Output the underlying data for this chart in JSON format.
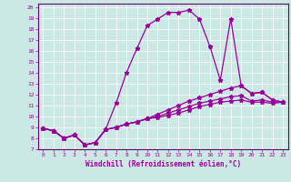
{
  "xlabel": "Windchill (Refroidissement éolien,°C)",
  "bg_color": "#cce8e4",
  "line_color": "#990099",
  "grid_color": "#ffffff",
  "spine_color": "#660066",
  "xlim": [
    -0.5,
    23.5
  ],
  "ylim": [
    7,
    20.3
  ],
  "xticks": [
    0,
    1,
    2,
    3,
    4,
    5,
    6,
    7,
    8,
    9,
    10,
    11,
    12,
    13,
    14,
    15,
    16,
    17,
    18,
    19,
    20,
    21,
    22,
    23
  ],
  "yticks": [
    7,
    8,
    9,
    10,
    11,
    12,
    13,
    14,
    15,
    16,
    17,
    18,
    19,
    20
  ],
  "line1_x": [
    0,
    1,
    2,
    3,
    4,
    5,
    6,
    7,
    8,
    9,
    10,
    11,
    12,
    13,
    14,
    15,
    16,
    17,
    18,
    19,
    20,
    21,
    22,
    23
  ],
  "line1_y": [
    8.9,
    8.7,
    8.0,
    8.3,
    7.4,
    7.6,
    8.8,
    11.2,
    14.0,
    16.2,
    18.3,
    18.9,
    19.5,
    19.5,
    19.7,
    18.9,
    16.4,
    13.3,
    18.9,
    12.8,
    12.1,
    12.2,
    11.5,
    11.3
  ],
  "line2_x": [
    0,
    1,
    2,
    3,
    4,
    5,
    6,
    7,
    8,
    9,
    10,
    11,
    12,
    13,
    14,
    15,
    16,
    17,
    18,
    19,
    20,
    21,
    22,
    23
  ],
  "line2_y": [
    8.9,
    8.7,
    8.0,
    8.3,
    7.4,
    7.6,
    8.8,
    9.0,
    9.3,
    9.5,
    9.8,
    10.2,
    10.6,
    11.0,
    11.4,
    11.7,
    12.0,
    12.3,
    12.6,
    12.8,
    12.1,
    12.2,
    11.5,
    11.3
  ],
  "line3_x": [
    0,
    1,
    2,
    3,
    4,
    5,
    6,
    7,
    8,
    9,
    10,
    11,
    12,
    13,
    14,
    15,
    16,
    17,
    18,
    19,
    20,
    21,
    22,
    23
  ],
  "line3_y": [
    8.9,
    8.7,
    8.0,
    8.3,
    7.4,
    7.6,
    8.8,
    9.0,
    9.3,
    9.5,
    9.8,
    10.0,
    10.3,
    10.6,
    10.9,
    11.2,
    11.4,
    11.6,
    11.8,
    11.9,
    11.4,
    11.5,
    11.3,
    11.3
  ],
  "line4_x": [
    0,
    1,
    2,
    3,
    4,
    5,
    6,
    7,
    8,
    9,
    10,
    11,
    12,
    13,
    14,
    15,
    16,
    17,
    18,
    19,
    20,
    21,
    22,
    23
  ],
  "line4_y": [
    8.9,
    8.7,
    8.0,
    8.3,
    7.4,
    7.6,
    8.8,
    9.0,
    9.3,
    9.5,
    9.8,
    9.9,
    10.1,
    10.3,
    10.6,
    10.9,
    11.1,
    11.3,
    11.4,
    11.5,
    11.3,
    11.3,
    11.2,
    11.3
  ]
}
